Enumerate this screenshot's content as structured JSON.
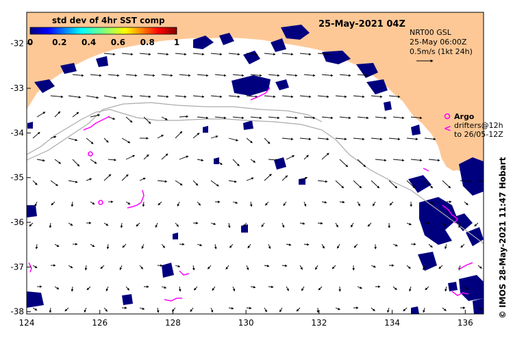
{
  "map": {
    "timestamp": "25-May-2021 04Z",
    "colorbar": {
      "title": "std dev of 4hr SST comp",
      "ticks": [
        "0",
        "0.2",
        "0.4",
        "0.6",
        "0.8",
        "1"
      ],
      "range": [
        0,
        1
      ]
    },
    "current_info": {
      "line1": "NRT00 GSL",
      "line2": "25-May 06:00Z",
      "line3": "0.5m/s (1kt 24h)"
    },
    "argo": {
      "label": "Argo",
      "drifters": "drifters@12h",
      "date": "to 26/05-12Z"
    },
    "credit": "© IMOS 28-May-2021 11:47 Hobart",
    "axes": {
      "x_ticks": [
        "124",
        "126",
        "128",
        "130",
        "132",
        "134",
        "136"
      ],
      "y_ticks": [
        "-32",
        "-33",
        "-34",
        "-35",
        "-36",
        "-37",
        "-38"
      ],
      "x_range": [
        124,
        136.5
      ],
      "y_range": [
        -38.05,
        -31.3
      ]
    },
    "colors": {
      "land": "#fdc896",
      "cloud": "#00007f",
      "argo": "#ff00ff"
    }
  }
}
